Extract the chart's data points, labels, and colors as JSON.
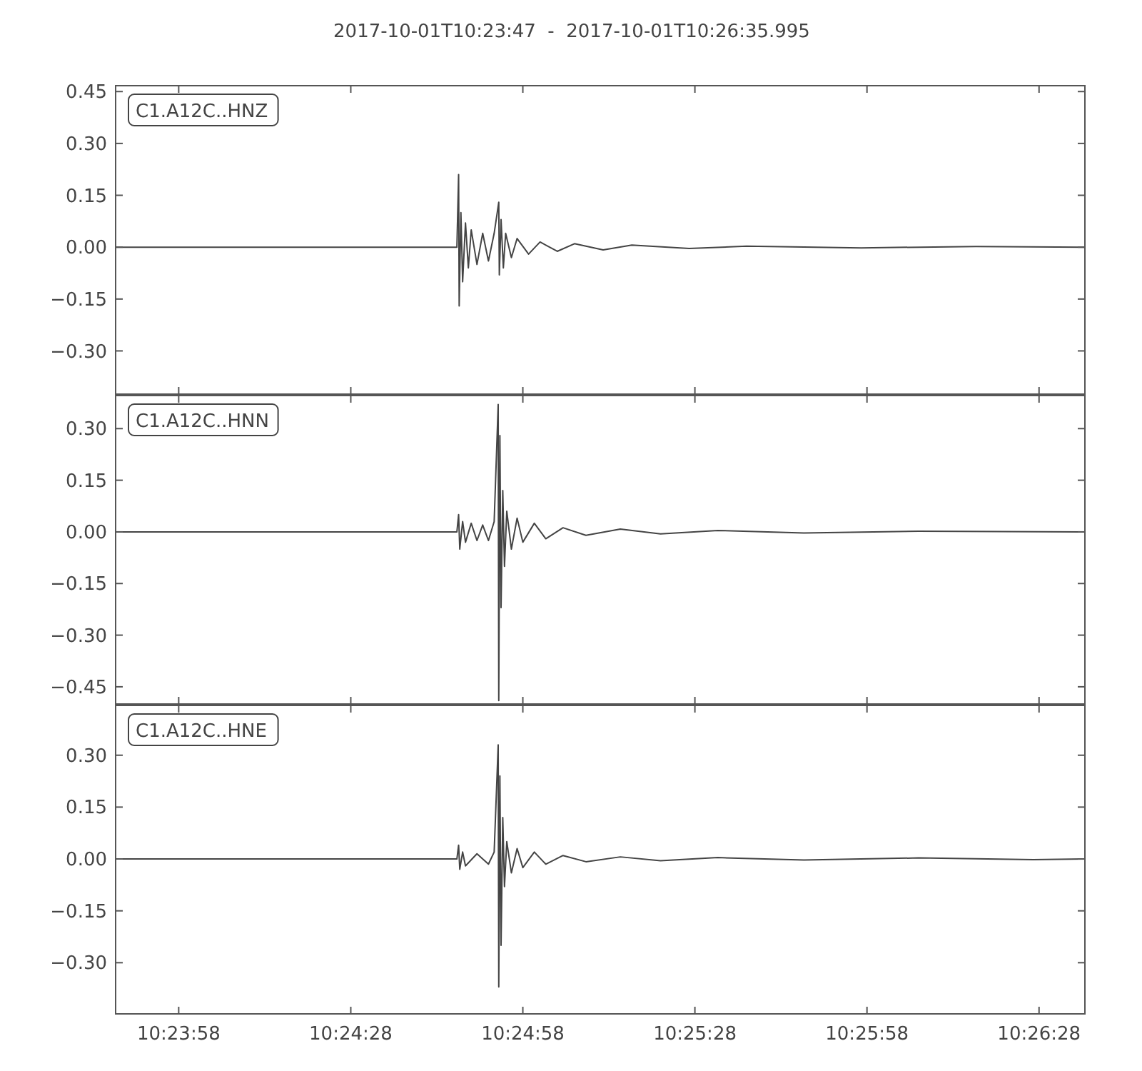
{
  "chart_data": [
    {
      "type": "line",
      "title": "2017-10-01T10:23:47  -  2017-10-01T10:26:35.995",
      "legend": "top left",
      "tick_labels": "y",
      "xlim": [
        10.396389,
        10.443332
      ],
      "xticks": [
        {
          "value": 10.399444,
          "label": null
        },
        {
          "value": 10.407778,
          "label": null
        },
        {
          "value": 10.416111,
          "label": null
        },
        {
          "value": 10.424444,
          "label": null
        },
        {
          "value": 10.432778,
          "label": null
        },
        {
          "value": 10.441111,
          "label": null
        }
      ],
      "ylim": [
        -0.425,
        0.467
      ],
      "yticks": [
        {
          "value": 0.45,
          "label": "0.45"
        },
        {
          "value": 0.3,
          "label": "0.30"
        },
        {
          "value": 0.15,
          "label": "0.15"
        },
        {
          "value": 0,
          "label": "0.00"
        },
        {
          "value": -0.15,
          "label": "−0.15"
        },
        {
          "value": -0.3,
          "label": "−0.30"
        }
      ],
      "series": [
        {
          "name": "C1.A12C..HNZ",
          "color": "#444444",
          "x": [
            10.396389,
            10.412917,
            10.413,
            10.413028,
            10.413111,
            10.413195,
            10.413333,
            10.413472,
            10.413611,
            10.413889,
            10.414167,
            10.414445,
            10.414722,
            10.414945,
            10.414972,
            10.415056,
            10.415167,
            10.415278,
            10.415556,
            10.415833,
            10.416389,
            10.416945,
            10.417778,
            10.418611,
            10.42,
            10.421389,
            10.424167,
            10.426945,
            10.4325,
            10.438056,
            10.443306
          ],
          "values": [
            0,
            0,
            0.21,
            -0.17,
            0.1,
            -0.1,
            0.07,
            -0.06,
            0.05,
            -0.05,
            0.04,
            -0.04,
            0.04,
            0.13,
            -0.08,
            0.08,
            -0.06,
            0.04,
            -0.03,
            0.025,
            -0.02,
            0.015,
            -0.012,
            0.01,
            -0.008,
            0.006,
            -0.004,
            0.003,
            -0.002,
            0.002,
            0
          ]
        }
      ]
    },
    {
      "type": "line",
      "legend": "top left",
      "tick_labels": "y",
      "xlim": [
        10.396389,
        10.443332
      ],
      "xticks": [
        {
          "value": 10.399444,
          "label": null
        },
        {
          "value": 10.407778,
          "label": null
        },
        {
          "value": 10.416111,
          "label": null
        },
        {
          "value": 10.424444,
          "label": null
        },
        {
          "value": 10.432778,
          "label": null
        },
        {
          "value": 10.441111,
          "label": null
        }
      ],
      "ylim": [
        -0.5,
        0.396
      ],
      "yticks": [
        {
          "value": 0.3,
          "label": "0.30"
        },
        {
          "value": 0.15,
          "label": "0.15"
        },
        {
          "value": 0,
          "label": "0.00"
        },
        {
          "value": -0.15,
          "label": "−0.15"
        },
        {
          "value": -0.3,
          "label": "−0.30"
        },
        {
          "value": -0.45,
          "label": "−0.45"
        }
      ],
      "series": [
        {
          "name": "C1.A12C..HNN",
          "color": "#444444",
          "x": [
            10.396389,
            10.412917,
            10.413,
            10.413056,
            10.413195,
            10.413333,
            10.413611,
            10.413889,
            10.414167,
            10.414445,
            10.414722,
            10.414917,
            10.414945,
            10.415,
            10.415056,
            10.415139,
            10.415222,
            10.415333,
            10.415556,
            10.415833,
            10.416111,
            10.416667,
            10.417222,
            10.418056,
            10.419167,
            10.420833,
            10.422778,
            10.425556,
            10.429722,
            10.435278,
            10.443306
          ],
          "values": [
            0,
            0,
            0.05,
            -0.05,
            0.03,
            -0.03,
            0.025,
            -0.025,
            0.02,
            -0.025,
            0.03,
            0.37,
            -0.49,
            0.28,
            -0.22,
            0.12,
            -0.1,
            0.06,
            -0.05,
            0.04,
            -0.03,
            0.025,
            -0.02,
            0.012,
            -0.01,
            0.008,
            -0.006,
            0.004,
            -0.003,
            0.002,
            0
          ]
        }
      ]
    },
    {
      "type": "line",
      "legend": "top left",
      "xlim": [
        10.396389,
        10.443332
      ],
      "xticks": [
        {
          "value": 10.399444,
          "label": "10:23:58"
        },
        {
          "value": 10.407778,
          "label": "10:24:28"
        },
        {
          "value": 10.416111,
          "label": "10:24:58"
        },
        {
          "value": 10.424444,
          "label": "10:25:28"
        },
        {
          "value": 10.432778,
          "label": "10:25:58"
        },
        {
          "value": 10.441111,
          "label": "10:26:28"
        }
      ],
      "ylim": [
        -0.448,
        0.444
      ],
      "yticks": [
        {
          "value": 0.3,
          "label": "0.30"
        },
        {
          "value": 0.15,
          "label": "0.15"
        },
        {
          "value": 0,
          "label": "0.00"
        },
        {
          "value": -0.15,
          "label": "−0.15"
        },
        {
          "value": -0.3,
          "label": "−0.30"
        }
      ],
      "series": [
        {
          "name": "C1.A12C..HNE",
          "color": "#444444",
          "x": [
            10.396389,
            10.412917,
            10.413,
            10.413056,
            10.413195,
            10.413333,
            10.413889,
            10.414445,
            10.414722,
            10.414917,
            10.414945,
            10.415,
            10.415056,
            10.415139,
            10.415222,
            10.415333,
            10.415556,
            10.415833,
            10.416111,
            10.416667,
            10.417222,
            10.418056,
            10.419167,
            10.420833,
            10.422778,
            10.425556,
            10.429722,
            10.435278,
            10.440833,
            10.443306
          ],
          "values": [
            0,
            0,
            0.04,
            -0.03,
            0.02,
            -0.02,
            0.015,
            -0.015,
            0.02,
            0.33,
            -0.37,
            0.24,
            -0.25,
            0.12,
            -0.08,
            0.05,
            -0.04,
            0.03,
            -0.025,
            0.02,
            -0.015,
            0.01,
            -0.008,
            0.006,
            -0.005,
            0.004,
            -0.003,
            0.003,
            -0.002,
            0
          ]
        }
      ]
    }
  ]
}
